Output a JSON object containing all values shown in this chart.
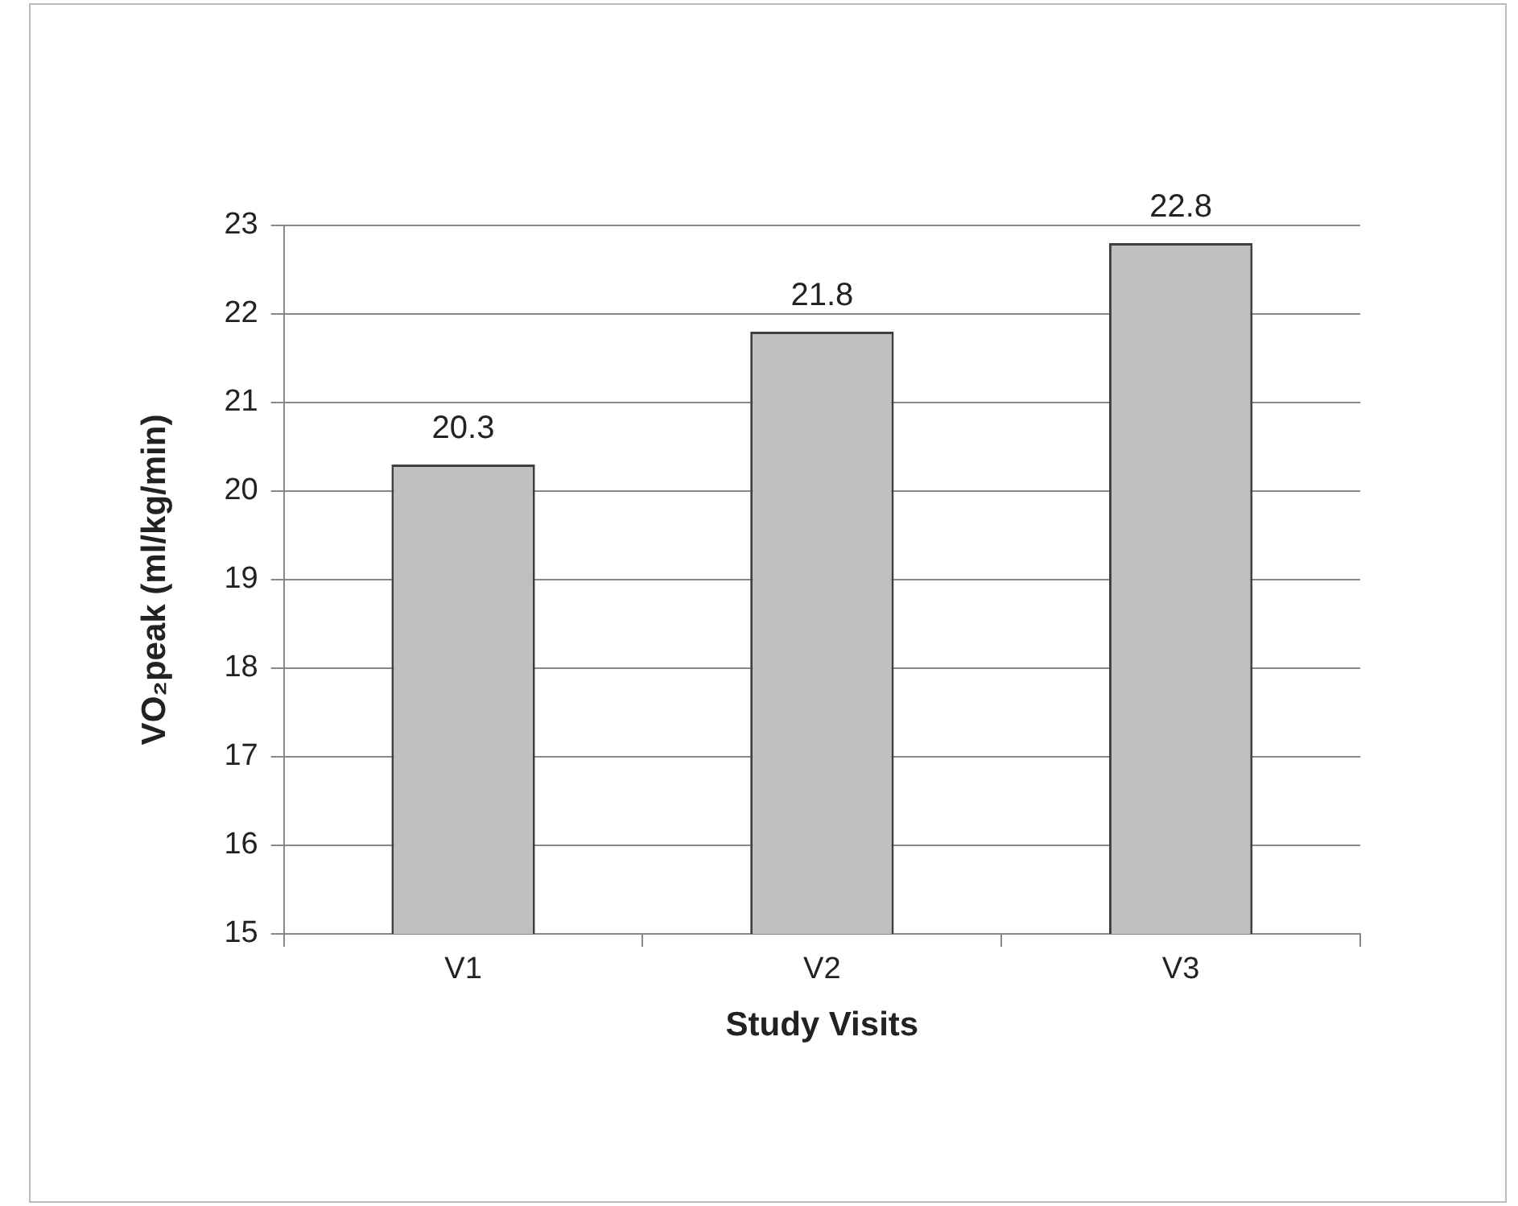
{
  "chart_data": {
    "type": "bar",
    "xlabel": "Study Visits",
    "ylabel": "VO₂peak (ml/kg/min)",
    "categories": [
      "V1",
      "V2",
      "V3"
    ],
    "values": [
      20.3,
      21.8,
      22.8
    ],
    "color": "#c0c0c0",
    "ylim": [
      15,
      23
    ],
    "yticks": [
      15,
      16,
      17,
      18,
      19,
      20,
      21,
      22,
      23
    ],
    "grid": "y",
    "data_labels": true
  }
}
